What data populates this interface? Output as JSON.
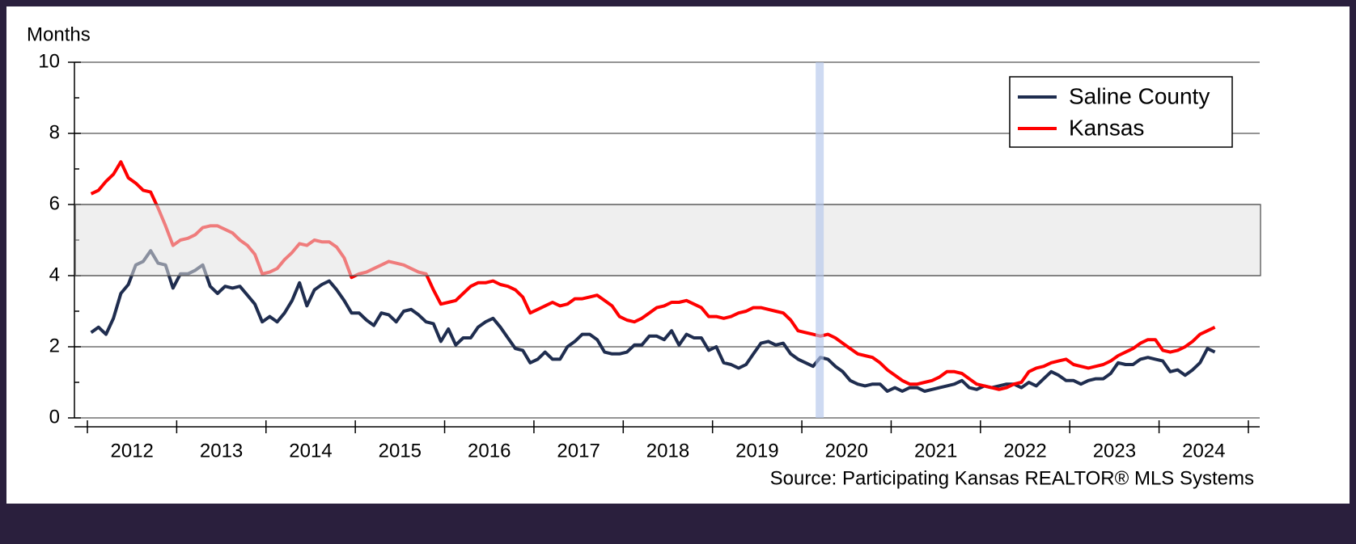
{
  "chart_data": {
    "type": "line",
    "ylabel": "Months",
    "source": "Source: Participating Kansas REALTOR® MLS Systems",
    "ylim": [
      0,
      10
    ],
    "yticks": [
      0,
      2,
      4,
      6,
      8,
      10
    ],
    "yminor_ticks": [
      1,
      3,
      5,
      7,
      9
    ],
    "grid": true,
    "xlim": [
      2011.855,
      2025.127
    ],
    "xticks": [
      {
        "value": 2012.5,
        "label": "2012"
      },
      {
        "value": 2013.5,
        "label": "2013"
      },
      {
        "value": 2014.5,
        "label": "2014"
      },
      {
        "value": 2015.5,
        "label": "2015"
      },
      {
        "value": 2016.5,
        "label": "2016"
      },
      {
        "value": 2017.5,
        "label": "2017"
      },
      {
        "value": 2018.5,
        "label": "2018"
      },
      {
        "value": 2019.5,
        "label": "2019"
      },
      {
        "value": 2020.5,
        "label": "2020"
      },
      {
        "value": 2021.5,
        "label": "2021"
      },
      {
        "value": 2022.5,
        "label": "2022"
      },
      {
        "value": 2023.5,
        "label": "2023"
      },
      {
        "value": 2024.5,
        "label": "2024"
      }
    ],
    "x_boundaries": [
      2012,
      2013,
      2014,
      2015,
      2016,
      2017,
      2018,
      2019,
      2020,
      2021,
      2022,
      2023,
      2024,
      2025
    ],
    "shaded_band": [
      4,
      6
    ],
    "vertical_band": 2020.2,
    "legend": "top-right",
    "x": [
      2012.042,
      2012.125,
      2012.208,
      2012.292,
      2012.375,
      2012.458,
      2012.542,
      2012.625,
      2012.708,
      2012.792,
      2012.875,
      2012.958,
      2013.042,
      2013.125,
      2013.208,
      2013.292,
      2013.375,
      2013.458,
      2013.542,
      2013.625,
      2013.708,
      2013.792,
      2013.875,
      2013.958,
      2014.042,
      2014.125,
      2014.208,
      2014.292,
      2014.375,
      2014.458,
      2014.542,
      2014.625,
      2014.708,
      2014.792,
      2014.875,
      2014.958,
      2015.042,
      2015.125,
      2015.208,
      2015.292,
      2015.375,
      2015.458,
      2015.542,
      2015.625,
      2015.708,
      2015.792,
      2015.875,
      2015.958,
      2016.042,
      2016.125,
      2016.208,
      2016.292,
      2016.375,
      2016.458,
      2016.542,
      2016.625,
      2016.708,
      2016.792,
      2016.875,
      2016.958,
      2017.042,
      2017.125,
      2017.208,
      2017.292,
      2017.375,
      2017.458,
      2017.542,
      2017.625,
      2017.708,
      2017.792,
      2017.875,
      2017.958,
      2018.042,
      2018.125,
      2018.208,
      2018.292,
      2018.375,
      2018.458,
      2018.542,
      2018.625,
      2018.708,
      2018.792,
      2018.875,
      2018.958,
      2019.042,
      2019.125,
      2019.208,
      2019.292,
      2019.375,
      2019.458,
      2019.542,
      2019.625,
      2019.708,
      2019.792,
      2019.875,
      2019.958,
      2020.042,
      2020.125,
      2020.208,
      2020.292,
      2020.375,
      2020.458,
      2020.542,
      2020.625,
      2020.708,
      2020.792,
      2020.875,
      2020.958,
      2021.042,
      2021.125,
      2021.208,
      2021.292,
      2021.375,
      2021.458,
      2021.542,
      2021.625,
      2021.708,
      2021.792,
      2021.875,
      2021.958,
      2022.042,
      2022.125,
      2022.208,
      2022.292,
      2022.375,
      2022.458,
      2022.542,
      2022.625,
      2022.708,
      2022.792,
      2022.875,
      2022.958,
      2023.042,
      2023.125,
      2023.208,
      2023.292,
      2023.375,
      2023.458,
      2023.542,
      2023.625,
      2023.708,
      2023.792,
      2023.875,
      2023.958,
      2024.042,
      2024.125,
      2024.208,
      2024.292,
      2024.375,
      2024.458,
      2024.542,
      2024.625
    ],
    "series": [
      {
        "name": "Saline County",
        "color": "#1f2d4f",
        "values": [
          2.4,
          2.55,
          2.35,
          2.8,
          3.5,
          3.75,
          4.3,
          4.4,
          4.7,
          4.35,
          4.3,
          3.65,
          4.05,
          4.05,
          4.15,
          4.3,
          3.7,
          3.5,
          3.7,
          3.65,
          3.7,
          3.45,
          3.2,
          2.7,
          2.85,
          2.7,
          2.95,
          3.3,
          3.8,
          3.15,
          3.6,
          3.75,
          3.85,
          3.6,
          3.3,
          2.95,
          2.95,
          2.75,
          2.6,
          2.95,
          2.9,
          2.7,
          3.0,
          3.05,
          2.9,
          2.7,
          2.65,
          2.15,
          2.5,
          2.05,
          2.25,
          2.25,
          2.55,
          2.7,
          2.8,
          2.55,
          2.25,
          1.95,
          1.9,
          1.55,
          1.65,
          1.85,
          1.65,
          1.65,
          2.0,
          2.15,
          2.35,
          2.35,
          2.2,
          1.85,
          1.8,
          1.8,
          1.85,
          2.05,
          2.05,
          2.3,
          2.3,
          2.2,
          2.45,
          2.05,
          2.35,
          2.25,
          2.25,
          1.9,
          2.0,
          1.55,
          1.5,
          1.4,
          1.5,
          1.8,
          2.1,
          2.15,
          2.05,
          2.1,
          1.8,
          1.65,
          1.55,
          1.45,
          1.7,
          1.65,
          1.45,
          1.3,
          1.05,
          0.95,
          0.9,
          0.95,
          0.95,
          0.75,
          0.85,
          0.75,
          0.85,
          0.85,
          0.75,
          0.8,
          0.85,
          0.9,
          0.95,
          1.05,
          0.85,
          0.8,
          0.9,
          0.85,
          0.9,
          0.95,
          0.95,
          0.85,
          1.0,
          0.9,
          1.1,
          1.3,
          1.2,
          1.05,
          1.05,
          0.95,
          1.05,
          1.1,
          1.1,
          1.25,
          1.55,
          1.5,
          1.5,
          1.65,
          1.7,
          1.65,
          1.6,
          1.3,
          1.35,
          1.2,
          1.35,
          1.55,
          1.95,
          1.85
        ]
      },
      {
        "name": "Kansas",
        "color": "#ff0000",
        "values": [
          6.3,
          6.4,
          6.65,
          6.85,
          7.2,
          6.75,
          6.6,
          6.4,
          6.35,
          5.9,
          5.4,
          4.85,
          5.0,
          5.05,
          5.15,
          5.35,
          5.4,
          5.4,
          5.3,
          5.2,
          5.0,
          4.85,
          4.6,
          4.05,
          4.1,
          4.2,
          4.45,
          4.65,
          4.9,
          4.85,
          5.0,
          4.95,
          4.95,
          4.8,
          4.5,
          3.95,
          4.05,
          4.1,
          4.2,
          4.3,
          4.4,
          4.35,
          4.3,
          4.2,
          4.1,
          4.05,
          3.6,
          3.2,
          3.25,
          3.3,
          3.5,
          3.7,
          3.8,
          3.8,
          3.85,
          3.75,
          3.7,
          3.6,
          3.4,
          2.95,
          3.05,
          3.15,
          3.25,
          3.15,
          3.2,
          3.35,
          3.35,
          3.4,
          3.45,
          3.3,
          3.15,
          2.85,
          2.75,
          2.7,
          2.8,
          2.95,
          3.1,
          3.15,
          3.25,
          3.25,
          3.3,
          3.2,
          3.1,
          2.85,
          2.85,
          2.8,
          2.85,
          2.95,
          3.0,
          3.1,
          3.1,
          3.05,
          3.0,
          2.95,
          2.75,
          2.45,
          2.4,
          2.35,
          2.3,
          2.35,
          2.25,
          2.1,
          1.95,
          1.8,
          1.75,
          1.7,
          1.55,
          1.35,
          1.2,
          1.05,
          0.95,
          0.95,
          1.0,
          1.05,
          1.15,
          1.3,
          1.3,
          1.25,
          1.1,
          0.95,
          0.9,
          0.85,
          0.8,
          0.85,
          0.95,
          1.0,
          1.3,
          1.4,
          1.45,
          1.55,
          1.6,
          1.65,
          1.5,
          1.45,
          1.4,
          1.45,
          1.5,
          1.6,
          1.75,
          1.85,
          1.95,
          2.1,
          2.2,
          2.2,
          1.9,
          1.85,
          1.9,
          2.0,
          2.15,
          2.35,
          2.45,
          2.55
        ]
      }
    ]
  }
}
